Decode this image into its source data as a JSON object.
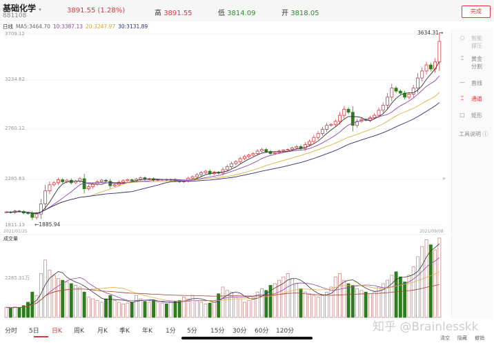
{
  "header": {
    "name": "基础化学",
    "code": "881108",
    "price": "3891.55 (1.28%)",
    "high_label": "高",
    "high": "3891.55",
    "low_label": "低",
    "low": "3814.09",
    "open_label": "开",
    "open": "3818.05",
    "done": "完成"
  },
  "ma_legend": {
    "period": "日线",
    "ma5": "MA5:3464.70",
    "ma10": "10:3387.13",
    "ma20": "20:3247.97",
    "ma30": "30:3131.89"
  },
  "colors": {
    "up": "#d9363e",
    "down": "#2e7d1e",
    "ma5": "#333333",
    "ma10": "#8e44ad",
    "ma20": "#e0b040",
    "ma30": "#2c2c7a"
  },
  "side_tools": [
    {
      "icon": "bulb-icon",
      "label": "智能\n撑压"
    },
    {
      "icon": "golden-split-icon",
      "label": "黄金\n分割"
    },
    {
      "icon": "line-icon",
      "label": "直线"
    },
    {
      "icon": "channel-icon",
      "label": "通道",
      "active": true
    },
    {
      "icon": "rect-icon",
      "label": "矩形"
    },
    {
      "icon": "help-icon",
      "label": "工具说明 ⓘ"
    }
  ],
  "tabs": [
    "分时",
    "5日",
    "日K",
    "周K",
    "月K",
    "季K",
    "年K",
    "1分",
    "5分",
    "15分",
    "30分",
    "60分",
    "120分"
  ],
  "active_tab": "日K",
  "bottom_actions": [
    "清空",
    "隐藏",
    "撤销"
  ],
  "watermark": "知乎 @Brainlesskk",
  "chart_data": {
    "type": "candlestick",
    "y_ticks": [
      "3709.12",
      "3234.62",
      "2760.12",
      "2285.63",
      "1811.13"
    ],
    "ylim": [
      1811.13,
      3709.12
    ],
    "x_start": "2021/01/25",
    "x_end": "2021/09/08",
    "max_marker": "3634.31→",
    "min_marker": "←1885.94",
    "volume_label": "成交量",
    "volume_tick": "2285.31万",
    "close": [
      1940,
      1935,
      1950,
      1945,
      1930,
      1925,
      1886,
      1920,
      2020,
      2150,
      2210,
      2230,
      2260,
      2240,
      2255,
      2230,
      2245,
      2270,
      2170,
      2190,
      2215,
      2240,
      2255,
      2245,
      2200,
      2210,
      2235,
      2250,
      2260,
      2250,
      2265,
      2280,
      2265,
      2270,
      2255,
      2260,
      2262,
      2258,
      2262,
      2248,
      2240,
      2250,
      2275,
      2290,
      2310,
      2330,
      2345,
      2320,
      2335,
      2325,
      2360,
      2390,
      2420,
      2440,
      2470,
      2490,
      2505,
      2520,
      2545,
      2560,
      2540,
      2520,
      2530,
      2545,
      2555,
      2560,
      2575,
      2590,
      2570,
      2610,
      2640,
      2680,
      2720,
      2760,
      2800,
      2810,
      2840,
      2900,
      2960,
      2930,
      2800,
      2840,
      2860,
      2850,
      2875,
      2900,
      2950,
      3000,
      3080,
      3170,
      3140,
      3120,
      3080,
      3110,
      3170,
      3270,
      3340,
      3400,
      3360,
      3430,
      3634
    ],
    "volume": [
      600,
      550,
      620,
      580,
      700,
      900,
      1500,
      1300,
      2600,
      3400,
      2800,
      2500,
      2300,
      2200,
      2100,
      2000,
      1900,
      1800,
      1500,
      1200,
      1100,
      1000,
      900,
      1100,
      1300,
      1000,
      900,
      800,
      850,
      900,
      1300,
      1100,
      950,
      900,
      1000,
      900,
      850,
      800,
      900,
      950,
      1000,
      1200,
      1100,
      1300,
      1000,
      900,
      800,
      850,
      900,
      1400,
      1800,
      1600,
      1500,
      1200,
      1100,
      900,
      1000,
      1200,
      1500,
      1700,
      1600,
      1900,
      2000,
      2200,
      2400,
      2600,
      2300,
      2000,
      1700,
      1500,
      1400,
      1300,
      1200,
      1300,
      1500,
      1800,
      2400,
      2600,
      2200,
      2000,
      1900,
      1700,
      1600,
      1500,
      1400,
      1500,
      1800,
      2000,
      2200,
      2500,
      2700,
      2400,
      2100,
      2500,
      3000,
      3600,
      4200,
      4600,
      4300,
      4000,
      4700
    ]
  }
}
